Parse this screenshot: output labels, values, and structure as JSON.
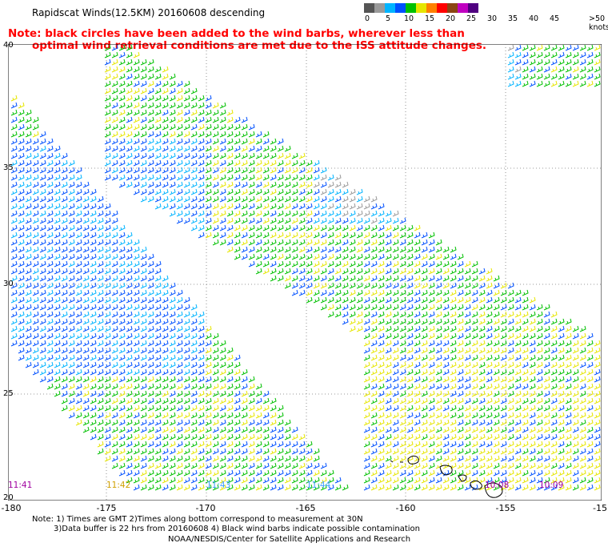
{
  "title": "Rapidscat Winds(12.5KM) 20160608 descending",
  "note": {
    "line1": "Note: black circles have been added to the wind barbs, wherever less than",
    "line2": "optimal wind retrieval conditions are met due to the ISS attitude changes."
  },
  "color_scale": {
    "labels": [
      "0",
      "5",
      "10",
      "15",
      "20",
      "25",
      "30",
      "35",
      "40",
      "45",
      ">50 knots"
    ],
    "colors": [
      "#555555",
      "#9a9a9a",
      "#00b4ff",
      "#0050ff",
      "#00c000",
      "#e6e600",
      "#ff8000",
      "#ff0000",
      "#8b4513",
      "#c000c0",
      "#500080"
    ]
  },
  "axes": {
    "lat_ticks": [
      "40",
      "35",
      "30",
      "25",
      "20"
    ],
    "lon_ticks": [
      "-180",
      "-175",
      "-170",
      "-165",
      "-160",
      "-155",
      "-15"
    ]
  },
  "times": [
    {
      "label": "11:41",
      "color": "#a000a0"
    },
    {
      "label": "11:42",
      "color": "#d0a000"
    },
    {
      "label": "11:43",
      "color": "#40a0ff"
    },
    {
      "label": "11:44",
      "color": "#40a0ff"
    },
    {
      "label": "10:08",
      "color": "#a000a0"
    },
    {
      "label": "10:09",
      "color": "#a000a0"
    }
  ],
  "footnote": {
    "line1": "Note: 1) Times are GMT 2)Times along bottom correspond to measurement at 30N",
    "line2": "3)Data buffer is 22 hrs from 20160608 4) Black wind barbs indicate possible contamination"
  },
  "credit": "NOAA/NESDIS/Center for Satellite Applications and Research"
}
